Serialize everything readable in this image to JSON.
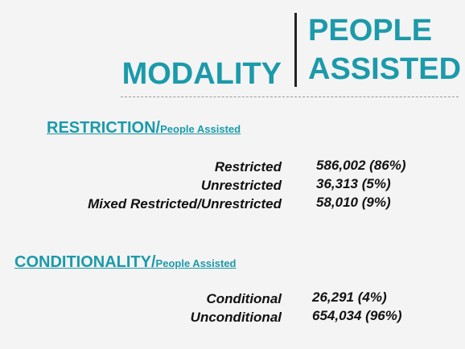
{
  "header": {
    "title_left": "MODALITY",
    "title_right": [
      "PEOPLE",
      "ASSISTED"
    ]
  },
  "sections": [
    {
      "title": "RESTRICTION/",
      "subtitle": "People Assisted",
      "rows": [
        [
          "Restricted",
          "586,002 (86%)"
        ],
        [
          "Unrestricted",
          "36,313 (5%)"
        ],
        [
          "Mixed Restricted/Unrestricted",
          "58,010 (9%)"
        ]
      ]
    },
    {
      "title": "CONDITIONALITY/",
      "subtitle": "People Assisted",
      "rows": [
        [
          "Conditional",
          "26,291 (4%)"
        ],
        [
          "Unconditional",
          "654,034 (96%)"
        ]
      ]
    }
  ]
}
